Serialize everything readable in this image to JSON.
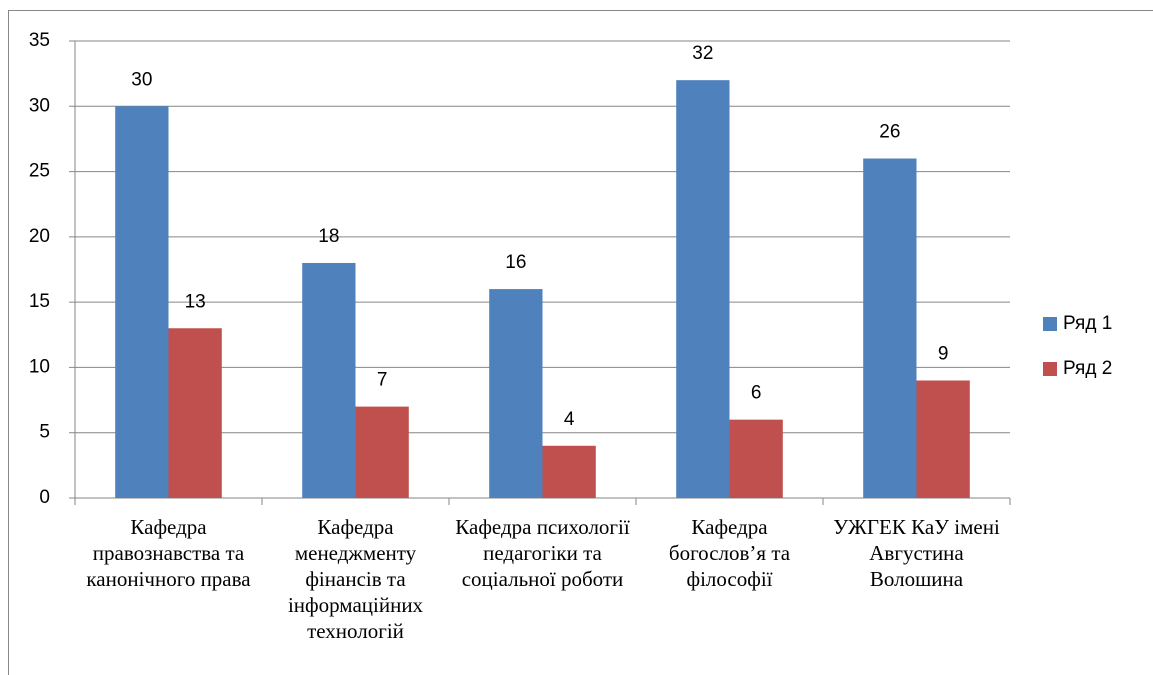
{
  "chart_data": {
    "type": "bar",
    "categories": [
      "Кафедра правознавства та канонічного права",
      "Кафедра менеджменту фінансів та інформаційних технологій",
      "Кафедра психології педагогіки та соціальної роботи",
      "Кафедра богослов’я та філософії",
      "УЖГЕК КаУ імені Августина Волошина"
    ],
    "series": [
      {
        "name": "Ряд 1",
        "color": "#4f81bd",
        "values": [
          30,
          18,
          16,
          32,
          26
        ]
      },
      {
        "name": "Ряд 2",
        "color": "#c0504d",
        "values": [
          13,
          7,
          4,
          6,
          9
        ]
      }
    ],
    "ylim": [
      0,
      35
    ],
    "yticks": [
      0,
      5,
      10,
      15,
      20,
      25,
      30,
      35
    ],
    "grid": true,
    "legend": "right"
  }
}
